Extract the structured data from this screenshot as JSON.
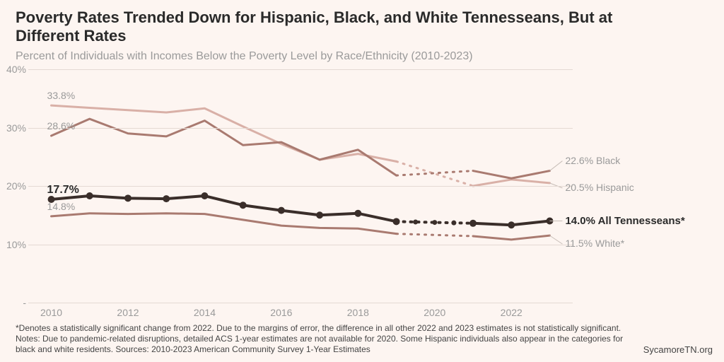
{
  "title": "Poverty Rates Trended Down for Hispanic, Black, and White Tennesseans, But at Different Rates",
  "subtitle": "Percent of Individuals with Incomes Below the Poverty Level by Race/Ethnicity (2010-2023)",
  "footnote": "*Denotes a statistically significant change from 2022. Due to the margins of error, the difference in all other 2022 and 2023 estimates is not statistically significant.\nNotes: Due to pandemic-related disruptions, detailed ACS 1-year estimates are not available for 2020. Some Hispanic individuals also appear in the categories for black and white residents. Sources: 2010-2023 American Community Survey 1-Year Estimates",
  "source": "SycamoreTN.org",
  "chart": {
    "type": "line",
    "xlim": [
      2009.4,
      2023.6
    ],
    "ylim": [
      0,
      40
    ],
    "ytick_step": 10,
    "ytick_suffix": "%",
    "years": [
      2010,
      2011,
      2012,
      2013,
      2014,
      2015,
      2016,
      2017,
      2018,
      2019,
      2020,
      2021,
      2022,
      2023
    ],
    "xtick_years": [
      2010,
      2012,
      2014,
      2016,
      2018,
      2020,
      2022
    ],
    "background_color": "#fdf5f1",
    "grid_color": "#e4d9d3",
    "axis_label_color": "#9a9a9a",
    "axis_fontsize": 14,
    "title_fontsize": 22,
    "title_color": "#2a2a2a",
    "subtitle_fontsize": 16,
    "subtitle_color": "#9a9a9a",
    "footnote_fontsize": 12,
    "footnote_color": "#444444",
    "series": [
      {
        "name": "Hispanic",
        "color": "#d9b0a7",
        "line_width": 3,
        "marker": "none",
        "values": [
          33.8,
          33.4,
          33.0,
          32.6,
          33.3,
          30.2,
          27.2,
          24.5,
          25.5,
          24.2,
          null,
          20.0,
          21.1,
          20.5
        ],
        "start_label": "33.8%",
        "end_label": "20.5%",
        "right_label": "Hispanic",
        "bold": false
      },
      {
        "name": "Black",
        "color": "#a97a70",
        "line_width": 3,
        "marker": "none",
        "values": [
          28.6,
          31.5,
          29.0,
          28.5,
          31.2,
          27.0,
          27.5,
          24.5,
          26.2,
          21.8,
          null,
          22.6,
          21.3,
          22.6
        ],
        "start_label": "28.6%",
        "end_label": "22.6%",
        "right_label": "Black",
        "bold": false
      },
      {
        "name": "All Tennesseans",
        "color": "#3a2e2a",
        "line_width": 4,
        "marker": "circle",
        "marker_size": 5,
        "values": [
          17.7,
          18.3,
          17.9,
          17.8,
          18.3,
          16.7,
          15.8,
          15.0,
          15.3,
          13.9,
          null,
          13.6,
          13.3,
          14.0
        ],
        "start_label": "17.7%",
        "end_label": "14.0%",
        "right_label": "All Tennesseans*",
        "bold": true
      },
      {
        "name": "White",
        "color": "#a97a70",
        "line_width": 3,
        "marker": "none",
        "values": [
          14.8,
          15.3,
          15.2,
          15.3,
          15.2,
          14.2,
          13.2,
          12.8,
          12.7,
          11.8,
          null,
          11.4,
          10.8,
          11.5
        ],
        "start_label": "14.8%",
        "end_label": "11.5%",
        "right_label": "White*",
        "bold": false
      }
    ]
  }
}
